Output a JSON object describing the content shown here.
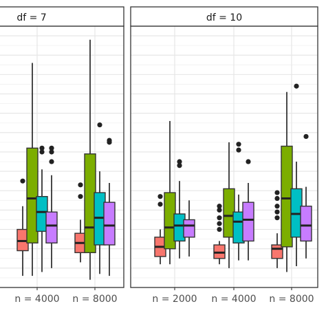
{
  "chart_data": {
    "type": "box",
    "series_colors": [
      "#F8766D",
      "#7CAE00",
      "#00BFC4",
      "#C77CFF"
    ],
    "panels": [
      {
        "strip": "df = 7",
        "categories": [
          "n = 4000",
          "n = 8000"
        ],
        "groups": [
          {
            "boxes": [
              {
                "min": 0.6,
                "q1": 1.9,
                "median": 2.4,
                "q3": 3.0,
                "max": 4.2,
                "outliers": [
                  5.5
                ]
              },
              {
                "min": 0.6,
                "q1": 2.3,
                "median": 4.6,
                "q3": 7.2,
                "max": 11.6,
                "outliers": []
              },
              {
                "min": 0.8,
                "q1": 2.9,
                "median": 3.9,
                "q3": 4.7,
                "max": 6.1,
                "outliers": [
                  7.0,
                  7.2
                ]
              },
              {
                "min": 1.0,
                "q1": 2.3,
                "median": 3.2,
                "q3": 3.9,
                "max": 5.8,
                "outliers": [
                  6.5,
                  7.0,
                  7.2
                ]
              }
            ]
          },
          {
            "boxes": [
              {
                "min": 1.3,
                "q1": 1.8,
                "median": 2.3,
                "q3": 2.8,
                "max": 3.5,
                "outliers": [
                  4.7,
                  5.3
                ]
              },
              {
                "min": 0.4,
                "q1": 1.8,
                "median": 3.1,
                "q3": 6.9,
                "max": 12.8,
                "outliers": []
              },
              {
                "min": 0.7,
                "q1": 2.2,
                "median": 3.6,
                "q3": 4.9,
                "max": 6.0,
                "outliers": [
                  8.4
                ]
              },
              {
                "min": 0.6,
                "q1": 2.2,
                "median": 3.2,
                "q3": 4.4,
                "max": 5.4,
                "outliers": [
                  7.5,
                  7.6
                ]
              }
            ]
          }
        ]
      },
      {
        "strip": "df = 10",
        "categories": [
          "n = 2000",
          "n = 4000",
          "n = 8000"
        ],
        "groups": [
          {
            "boxes": [
              {
                "min": 1.2,
                "q1": 1.6,
                "median": 2.1,
                "q3": 2.6,
                "max": 3.0,
                "outliers": [
                  4.3,
                  4.7
                ]
              },
              {
                "min": 1.2,
                "q1": 2.0,
                "median": 3.1,
                "q3": 4.9,
                "max": 8.6,
                "outliers": []
              },
              {
                "min": 1.5,
                "q1": 2.4,
                "median": 3.2,
                "q3": 3.8,
                "max": 5.5,
                "outliers": [
                  6.3,
                  6.5
                ]
              },
              {
                "min": 1.6,
                "q1": 2.6,
                "median": 3.2,
                "q3": 3.5,
                "max": 4.5,
                "outliers": []
              }
            ]
          },
          {
            "boxes": [
              {
                "min": 1.2,
                "q1": 1.5,
                "median": 1.8,
                "q3": 2.2,
                "max": 2.4,
                "outliers": [
                  3.0,
                  3.3,
                  3.6,
                  4.0,
                  4.2
                ]
              },
              {
                "min": 1.0,
                "q1": 2.6,
                "median": 3.7,
                "q3": 5.1,
                "max": 7.5,
                "outliers": []
              },
              {
                "min": 1.4,
                "q1": 2.3,
                "median": 3.4,
                "q3": 3.9,
                "max": 4.8,
                "outliers": [
                  7.1,
                  7.4
                ]
              },
              {
                "min": 1.4,
                "q1": 2.4,
                "median": 3.5,
                "q3": 4.4,
                "max": 5.4,
                "outliers": [
                  6.5
                ]
              }
            ]
          },
          {
            "boxes": [
              {
                "min": 1.0,
                "q1": 1.5,
                "median": 2.0,
                "q3": 2.2,
                "max": 2.8,
                "outliers": [
                  3.6,
                  3.9,
                  4.2,
                  4.6,
                  4.9
                ]
              },
              {
                "min": 0.8,
                "q1": 2.1,
                "median": 4.6,
                "q3": 7.3,
                "max": 10.1,
                "outliers": []
              },
              {
                "min": 1.1,
                "q1": 2.6,
                "median": 3.8,
                "q3": 5.1,
                "max": 6.5,
                "outliers": [
                  10.4
                ]
              },
              {
                "min": 1.5,
                "q1": 2.4,
                "median": 3.2,
                "q3": 4.2,
                "max": 5.2,
                "outliers": [
                  7.8
                ]
              }
            ]
          }
        ]
      }
    ],
    "ylim": [
      0,
      13.5
    ],
    "grid": true,
    "legend": "none"
  }
}
